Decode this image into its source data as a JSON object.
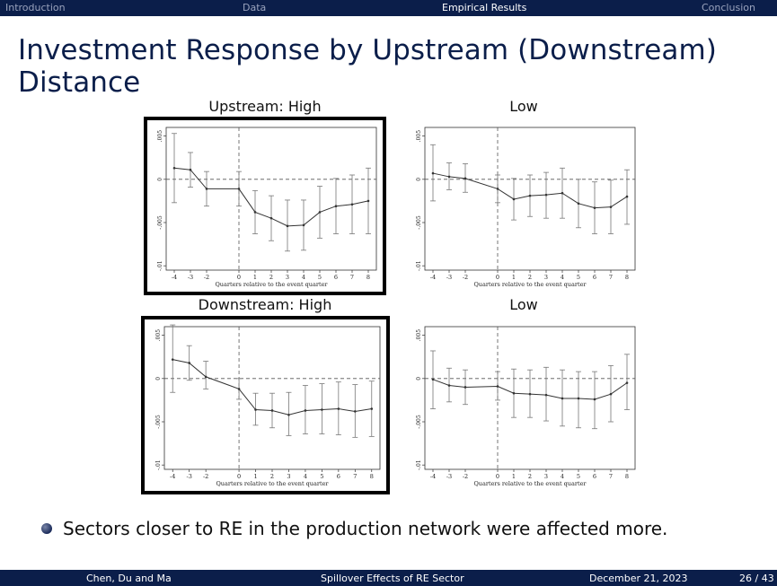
{
  "nav": {
    "sections": [
      "Introduction",
      "Data",
      "Empirical Results",
      "Conclusion"
    ],
    "active": "Empirical Results"
  },
  "slide": {
    "title": "Investment Response by Upstream (Downstream) Distance",
    "bullet": "Sectors closer to RE in the production network were affected more."
  },
  "panels": {
    "upstream_high": "Upstream: High",
    "upstream_low": "Low",
    "downstream_high": "Downstream: High",
    "downstream_low": "Low"
  },
  "footer": {
    "authors": "Chen, Du and Ma",
    "talk": "Spillover Effects of RE Sector",
    "date": "December 21, 2023",
    "page": "26 / 43"
  },
  "colors": {
    "nav_bg": "#0b1e4a",
    "title": "#0b1e4a",
    "highlight_frame": "#000000"
  },
  "chart_data": [
    {
      "type": "line",
      "id": "upstream_high",
      "title": "Upstream: High",
      "xlabel": "Quarters relative to the event quarter",
      "ylabel": "",
      "x": [
        -4,
        -3,
        -2,
        0,
        1,
        2,
        3,
        4,
        5,
        6,
        7,
        8
      ],
      "xticks": [
        -4,
        -3,
        -2,
        0,
        1,
        2,
        3,
        4,
        5,
        6,
        7,
        8
      ],
      "yticks": [
        0.005,
        0,
        -0.005,
        -0.01
      ],
      "ytick_labels": [
        ".005",
        "0",
        "-.005",
        "-.01"
      ],
      "ylim": [
        -0.0105,
        0.006
      ],
      "xlim": [
        -4.5,
        8.5
      ],
      "event_line_x": 0,
      "series": [
        {
          "name": "coefficient",
          "values": [
            0.0013,
            0.0011,
            -0.0011,
            -0.0011,
            -0.0038,
            -0.0045,
            -0.0054,
            -0.0053,
            -0.0038,
            -0.0031,
            -0.0029,
            -0.0025
          ],
          "ci_low": [
            -0.0027,
            -0.0009,
            -0.0031,
            -0.0031,
            -0.0063,
            -0.0071,
            -0.0083,
            -0.0082,
            -0.0068,
            -0.0063,
            -0.0063,
            -0.0063
          ],
          "ci_high": [
            0.0053,
            0.0031,
            0.0009,
            0.0009,
            -0.0013,
            -0.0019,
            -0.0024,
            -0.0024,
            -0.0008,
            0.0001,
            0.0005,
            0.0013
          ]
        }
      ]
    },
    {
      "type": "line",
      "id": "upstream_low",
      "title": "Low",
      "xlabel": "Quarters relative to the event quarter",
      "ylabel": "",
      "x": [
        -4,
        -3,
        -2,
        0,
        1,
        2,
        3,
        4,
        5,
        6,
        7,
        8
      ],
      "xticks": [
        -4,
        -3,
        -2,
        0,
        1,
        2,
        3,
        4,
        5,
        6,
        7,
        8
      ],
      "yticks": [
        0.005,
        0,
        -0.005,
        -0.01
      ],
      "ytick_labels": [
        ".005",
        "0",
        "-.005",
        "-.01"
      ],
      "ylim": [
        -0.0105,
        0.006
      ],
      "xlim": [
        -4.5,
        8.5
      ],
      "event_line_x": 0,
      "series": [
        {
          "name": "coefficient",
          "values": [
            0.0007,
            0.0003,
            0.0001,
            -0.0011,
            -0.0023,
            -0.0019,
            -0.0018,
            -0.0016,
            -0.0028,
            -0.0033,
            -0.0032,
            -0.002
          ],
          "ci_low": [
            -0.0025,
            -0.0012,
            -0.0015,
            -0.0027,
            -0.0047,
            -0.0043,
            -0.0045,
            -0.0045,
            -0.0056,
            -0.0063,
            -0.0063,
            -0.0052
          ],
          "ci_high": [
            0.004,
            0.0019,
            0.0018,
            0.0005,
            0.0001,
            0.0005,
            0.0008,
            0.0013,
            0.0,
            -0.0003,
            -0.0001,
            0.0011
          ]
        }
      ]
    },
    {
      "type": "line",
      "id": "downstream_high",
      "title": "Downstream: High",
      "xlabel": "Quarters relative to the event quarter",
      "ylabel": "",
      "x": [
        -4,
        -3,
        -2,
        0,
        1,
        2,
        3,
        4,
        5,
        6,
        7,
        8
      ],
      "xticks": [
        -4,
        -3,
        -2,
        0,
        1,
        2,
        3,
        4,
        5,
        6,
        7,
        8
      ],
      "yticks": [
        0.005,
        0,
        -0.005,
        -0.01
      ],
      "ytick_labels": [
        ".005",
        "0",
        "-.005",
        "-.01"
      ],
      "ylim": [
        -0.0105,
        0.006
      ],
      "xlim": [
        -4.5,
        8.5
      ],
      "event_line_x": 0,
      "series": [
        {
          "name": "coefficient",
          "values": [
            0.0022,
            0.0018,
            0.0002,
            -0.0012,
            -0.0036,
            -0.0037,
            -0.0042,
            -0.0037,
            -0.0036,
            -0.0035,
            -0.0038,
            -0.0035
          ],
          "ci_low": [
            -0.0016,
            -0.0002,
            -0.0012,
            -0.0024,
            -0.0054,
            -0.0057,
            -0.0066,
            -0.0064,
            -0.0064,
            -0.0065,
            -0.0068,
            -0.0067
          ],
          "ci_high": [
            0.0062,
            0.0038,
            0.002,
            0.0,
            -0.0017,
            -0.0017,
            -0.0016,
            -0.0008,
            -0.0006,
            -0.0004,
            -0.0007,
            -0.0003
          ]
        }
      ]
    },
    {
      "type": "line",
      "id": "downstream_low",
      "title": "Low",
      "xlabel": "Quarters relative to the event quarter",
      "ylabel": "",
      "x": [
        -4,
        -3,
        -2,
        0,
        1,
        2,
        3,
        4,
        5,
        6,
        7,
        8
      ],
      "xticks": [
        -4,
        -3,
        -2,
        0,
        1,
        2,
        3,
        4,
        5,
        6,
        7,
        8
      ],
      "yticks": [
        0.005,
        0,
        -0.005,
        -0.01
      ],
      "ytick_labels": [
        ".005",
        "0",
        "-.005",
        "-.01"
      ],
      "ylim": [
        -0.0105,
        0.006
      ],
      "xlim": [
        -4.5,
        8.5
      ],
      "event_line_x": 0,
      "series": [
        {
          "name": "coefficient",
          "values": [
            -0.0001,
            -0.0008,
            -0.001,
            -0.0009,
            -0.0017,
            -0.0018,
            -0.0019,
            -0.0023,
            -0.0023,
            -0.0024,
            -0.0018,
            -0.0005
          ],
          "ci_low": [
            -0.0035,
            -0.0027,
            -0.003,
            -0.0025,
            -0.0045,
            -0.0045,
            -0.0049,
            -0.0055,
            -0.0057,
            -0.0058,
            -0.005,
            -0.0036
          ],
          "ci_high": [
            0.0032,
            0.0012,
            0.001,
            0.0008,
            0.0011,
            0.001,
            0.0013,
            0.001,
            0.0008,
            0.0008,
            0.0015,
            0.0028
          ]
        }
      ]
    }
  ]
}
